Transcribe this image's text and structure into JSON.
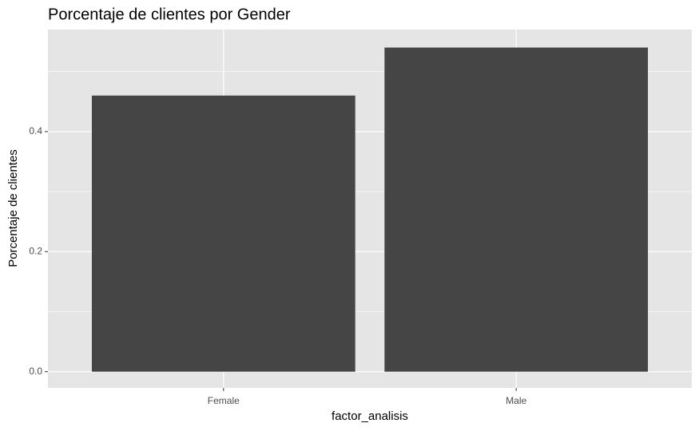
{
  "chart_data": {
    "type": "bar",
    "title": "Porcentaje de clientes por Gender",
    "x_label": "factor_analisis",
    "y_label": "Porcentaje de clientes",
    "categories": [
      "Female",
      "Male"
    ],
    "values": [
      0.46,
      0.54
    ],
    "color": "#454545",
    "ylim": [
      -0.027,
      0.57
    ],
    "yticks": [
      {
        "value": 0,
        "label": "0.0"
      },
      {
        "value": 0.2,
        "label": "0.2"
      },
      {
        "value": 0.4,
        "label": "0.4"
      }
    ],
    "y_minor_grid": [
      0.1,
      0.3,
      0.5
    ],
    "grid": true
  }
}
